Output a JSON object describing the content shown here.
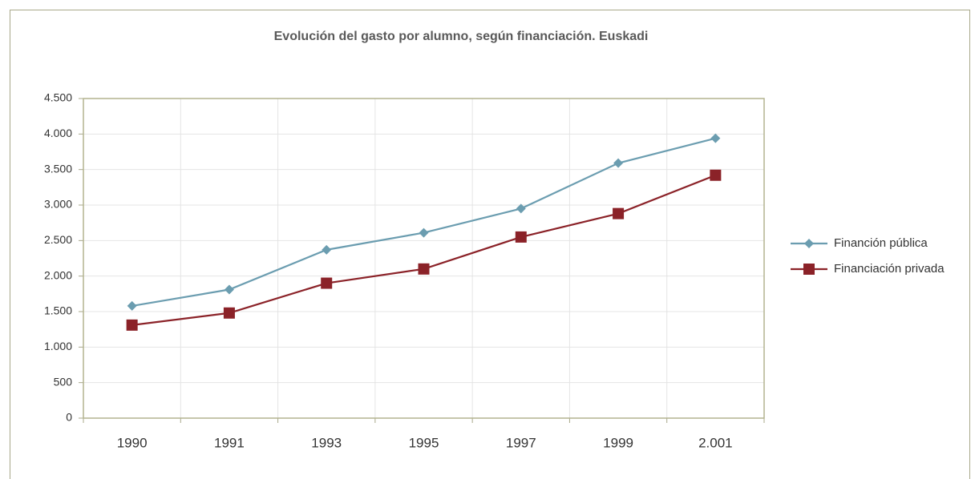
{
  "chart_data": {
    "type": "line",
    "title": "Evolución del gasto por alumno, según financiación. Euskadi",
    "categories": [
      "1990",
      "1991",
      "1993",
      "1995",
      "1997",
      "1999",
      "2.001"
    ],
    "series": [
      {
        "name": "Financión pública",
        "color": "#6b9db0",
        "marker": "diamond",
        "values": [
          1580,
          1810,
          2370,
          2610,
          2950,
          3590,
          3940
        ]
      },
      {
        "name": "Financiación privada",
        "color": "#8b2228",
        "marker": "square",
        "values": [
          1310,
          1480,
          1900,
          2100,
          2550,
          2880,
          3420
        ]
      }
    ],
    "ylim": [
      0,
      4500
    ],
    "yticks": [
      0,
      500,
      {
        "value": 1000,
        "label": "1.000"
      },
      {
        "value": 1500,
        "label": "1.500"
      },
      {
        "value": 2000,
        "label": "2.000"
      },
      {
        "value": 2500,
        "label": "2.500"
      },
      {
        "value": 3000,
        "label": "3.000"
      },
      {
        "value": 3500,
        "label": "3.500"
      },
      {
        "value": 4000,
        "label": "4.000"
      },
      {
        "value": 4500,
        "label": "4.500"
      }
    ],
    "grid": true,
    "legend": "right"
  }
}
